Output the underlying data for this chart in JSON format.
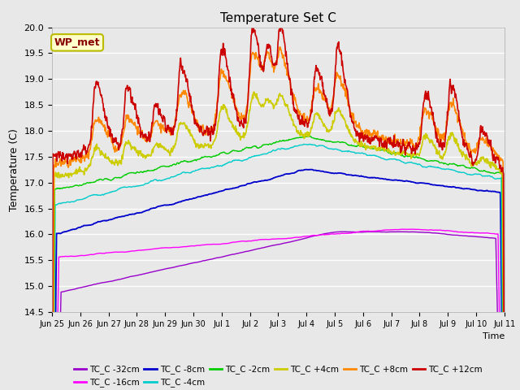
{
  "title": "Temperature Set C",
  "xlabel": "Time",
  "ylabel": "Temperature (C)",
  "ylim": [
    14.5,
    20.0
  ],
  "yticks": [
    14.5,
    15.0,
    15.5,
    16.0,
    16.5,
    17.0,
    17.5,
    18.0,
    18.5,
    19.0,
    19.5,
    20.0
  ],
  "series_colors": {
    "TC_C -32cm": "#9900cc",
    "TC_C -16cm": "#ff00ff",
    "TC_C -8cm": "#0000cc",
    "TC_C -4cm": "#00cccc",
    "TC_C -2cm": "#00cc00",
    "TC_C +4cm": "#cccc00",
    "TC_C +8cm": "#ff8800",
    "TC_C +12cm": "#cc0000"
  },
  "legend_order": [
    "TC_C -32cm",
    "TC_C -16cm",
    "TC_C -8cm",
    "TC_C -4cm",
    "TC_C -2cm",
    "TC_C +4cm",
    "TC_C +8cm",
    "TC_C +12cm"
  ],
  "wp_met_label": "WP_met",
  "background_color": "#e8e8e8",
  "n_points": 1000,
  "xtick_labels": [
    "Jun 25",
    "Jun 26",
    "Jun 27",
    "Jun 28",
    "Jun 29",
    "Jun 30",
    "Jul 1",
    "Jul 2",
    "Jul 3",
    "Jul 4",
    "Jul 5",
    "Jul 6",
    "Jul 7",
    "Jul 8",
    "Jul 9",
    "Jul 10",
    "Jul 11"
  ]
}
